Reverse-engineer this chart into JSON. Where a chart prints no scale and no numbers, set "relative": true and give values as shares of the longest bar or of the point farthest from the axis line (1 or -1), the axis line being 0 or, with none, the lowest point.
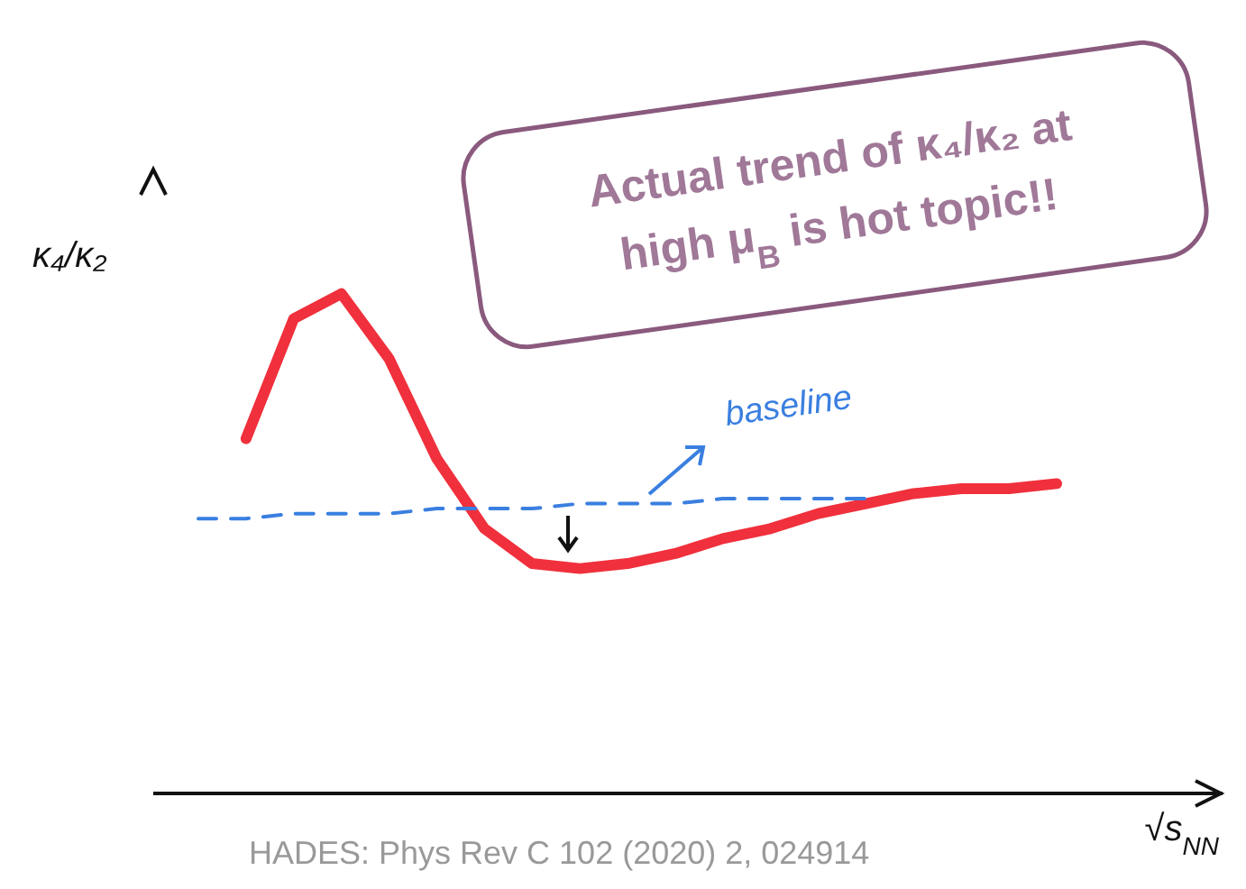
{
  "chart_data": {
    "type": "line",
    "relative": true,
    "xlabel": "√s$_{NN}$",
    "ylabel": "κ₄/κ₂",
    "categories": [
      null,
      null,
      null,
      null,
      null,
      null,
      null,
      null,
      null,
      null,
      null,
      null,
      null,
      null,
      null,
      null,
      null,
      null,
      null
    ],
    "series": [
      {
        "color": "#f0303c",
        "values": [
          null,
          0.71,
          0.95,
          1,
          0.87,
          0.67,
          0.53,
          0.46,
          0.45,
          0.46,
          0.48,
          0.51,
          0.53,
          0.56,
          0.58,
          0.6,
          0.61,
          0.61,
          0.62
        ]
      },
      {
        "name": "baseline",
        "color": "#3a7fe0",
        "line_style": "dashed",
        "values": [
          0.55,
          0.55,
          0.56,
          0.56,
          0.56,
          0.57,
          0.57,
          0.57,
          0.58,
          0.58,
          0.58,
          0.59,
          0.59,
          0.59,
          0.59,
          null,
          null,
          null,
          null
        ]
      }
    ],
    "annotations": [
      "Actual trend of κ₄/κ₂ at high μ$_{B}$ is hot topic!!",
      "HADES: Phys Rev C 102 (2020) 2, 024914"
    ],
    "tick_labels": false,
    "grid": false,
    "legend": false,
    "marker": "none",
    "line_style": "solid"
  }
}
